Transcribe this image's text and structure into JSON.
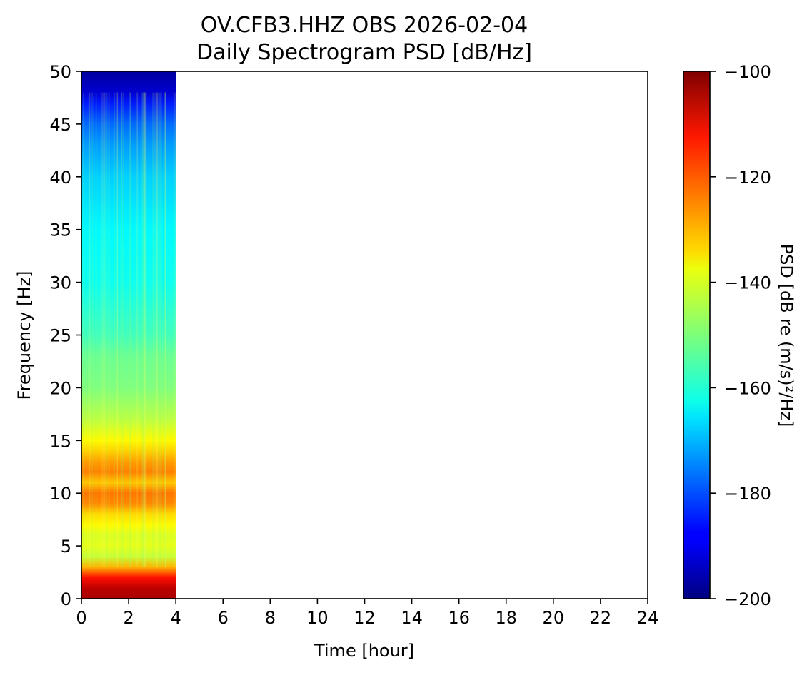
{
  "chart_data": {
    "type": "heatmap",
    "title": "OV.CFB3.HHZ OBS 2026-02-04",
    "subtitle": "Daily Spectrogram PSD [dB/Hz]",
    "xlabel": "Time [hour]",
    "ylabel": "Frequency [Hz]",
    "xlim": [
      0,
      24
    ],
    "ylim": [
      0,
      50
    ],
    "x_ticks": [
      "0",
      "2",
      "4",
      "6",
      "8",
      "10",
      "12",
      "14",
      "16",
      "18",
      "20",
      "22",
      "24"
    ],
    "y_ticks": [
      "0",
      "5",
      "10",
      "15",
      "20",
      "25",
      "30",
      "35",
      "40",
      "45",
      "50"
    ],
    "data_extent_hours": [
      0,
      4
    ],
    "colormap": "jet",
    "colorbar": {
      "label": "PSD [dB re (m/s)²/Hz]",
      "range": [
        -200,
        -100
      ],
      "ticks": [
        "−200",
        "−180",
        "−160",
        "−140",
        "−120",
        "−100"
      ]
    },
    "psd_profile_by_frequency": [
      {
        "f": 0,
        "psd": -104
      },
      {
        "f": 1,
        "psd": -106
      },
      {
        "f": 2,
        "psd": -114
      },
      {
        "f": 3,
        "psd": -130
      },
      {
        "f": 4,
        "psd": -143
      },
      {
        "f": 5,
        "psd": -140
      },
      {
        "f": 6,
        "psd": -141
      },
      {
        "f": 7,
        "psd": -137
      },
      {
        "f": 8,
        "psd": -134
      },
      {
        "f": 9,
        "psd": -126
      },
      {
        "f": 10,
        "psd": -124
      },
      {
        "f": 11,
        "psd": -132
      },
      {
        "f": 12,
        "psd": -125
      },
      {
        "f": 13,
        "psd": -128
      },
      {
        "f": 14,
        "psd": -133
      },
      {
        "f": 15,
        "psd": -137
      },
      {
        "f": 17,
        "psd": -144
      },
      {
        "f": 20,
        "psd": -150
      },
      {
        "f": 23,
        "psd": -152
      },
      {
        "f": 25,
        "psd": -156
      },
      {
        "f": 27,
        "psd": -158
      },
      {
        "f": 30,
        "psd": -161
      },
      {
        "f": 35,
        "psd": -163
      },
      {
        "f": 40,
        "psd": -167
      },
      {
        "f": 43,
        "psd": -172
      },
      {
        "f": 45,
        "psd": -177
      },
      {
        "f": 47,
        "psd": -185
      },
      {
        "f": 48,
        "psd": -192
      },
      {
        "f": 50,
        "psd": -197
      }
    ]
  }
}
